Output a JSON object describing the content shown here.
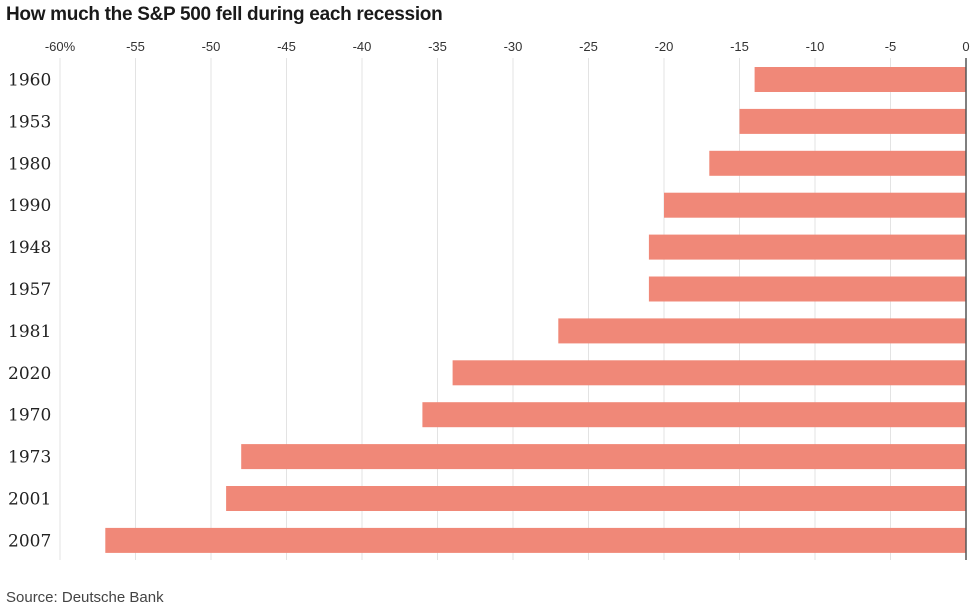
{
  "chart_data": {
    "type": "bar",
    "orientation": "horizontal",
    "title": "How much the S&P 500 fell during each recession",
    "source": "Source: Deutsche Bank",
    "xlim": [
      -60,
      0
    ],
    "x_ticks": [
      -60,
      -55,
      -50,
      -45,
      -40,
      -35,
      -30,
      -25,
      -20,
      -15,
      -10,
      -5,
      0
    ],
    "x_tick_labels": [
      "-60%",
      "-55",
      "-50",
      "-45",
      "-40",
      "-35",
      "-30",
      "-25",
      "-20",
      "-15",
      "-10",
      "-5",
      "0"
    ],
    "grid": "vertical",
    "categories": [
      "1960",
      "1953",
      "1980",
      "1990",
      "1948",
      "1957",
      "1981",
      "2020",
      "1970",
      "1973",
      "2001",
      "2007"
    ],
    "values": [
      -14,
      -15,
      -17,
      -20,
      -21,
      -21,
      -27,
      -34,
      -36,
      -48,
      -49,
      -57
    ],
    "bar_color": "#f08878",
    "grid_color": "#e3e3e3",
    "axis_color": "#555555"
  }
}
